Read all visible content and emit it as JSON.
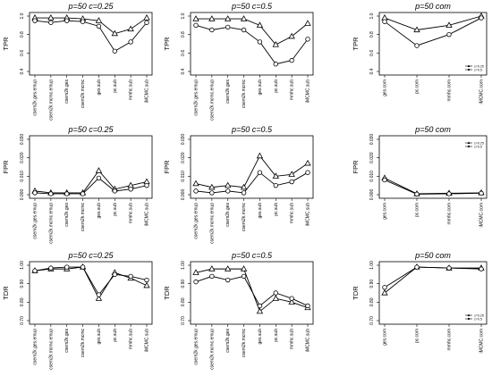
{
  "colors": {
    "line": "#000000",
    "frame": "#000000",
    "background": "#ffffff"
  },
  "chart_data": [
    {
      "type": "line",
      "title": "p=50  c=0.25",
      "ylabel": "TPR",
      "ylim": [
        0.4,
        1.0
      ],
      "yticks": [
        "0.4",
        "0.6",
        "0.8",
        "1.0"
      ],
      "categories": [
        "csem2k.ges.emup",
        "csem2k.mcmc.emup",
        "csem2k.ges",
        "csem2k.mcmc",
        "ges.sub",
        "pc.sub",
        "mmhc.sub",
        "iMCMC.sub"
      ],
      "series": [
        {
          "marker": "triangle",
          "values": [
            0.98,
            0.98,
            0.98,
            0.97,
            0.95,
            0.81,
            0.86,
            0.98
          ]
        },
        {
          "marker": "circle",
          "values": [
            0.95,
            0.93,
            0.95,
            0.94,
            0.89,
            0.62,
            0.72,
            0.93
          ]
        }
      ]
    },
    {
      "type": "line",
      "title": "p=50  c=0.5",
      "ylabel": "TPR",
      "ylim": [
        0.4,
        1.0
      ],
      "yticks": [
        "0.4",
        "0.6",
        "0.8",
        "1.0"
      ],
      "categories": [
        "csem2k.ges.emup",
        "csem2k.mcmc.emup",
        "csem2k.ges",
        "csem2k.mcmc",
        "ges.sub",
        "pc.sub",
        "mmhc.sub",
        "iMCMC.sub"
      ],
      "series": [
        {
          "marker": "triangle",
          "values": [
            0.97,
            0.97,
            0.97,
            0.97,
            0.9,
            0.69,
            0.78,
            0.92
          ]
        },
        {
          "marker": "circle",
          "values": [
            0.9,
            0.85,
            0.88,
            0.85,
            0.72,
            0.48,
            0.52,
            0.75
          ]
        }
      ]
    },
    {
      "type": "line",
      "title": "p=50  com",
      "ylabel": "TPR",
      "ylim": [
        0.4,
        1.0
      ],
      "yticks": [
        "0.4",
        "0.6",
        "0.8",
        "1.0"
      ],
      "categories": [
        "ges.com",
        "pc.com",
        "mmhc.com",
        "iMCMC.com"
      ],
      "legend": {
        "position": "bottom-right",
        "entries": [
          "c=0.25",
          "c=0.5"
        ]
      },
      "series": [
        {
          "marker": "triangle",
          "values": [
            0.98,
            0.85,
            0.9,
            1.0
          ]
        },
        {
          "marker": "circle",
          "values": [
            0.94,
            0.68,
            0.8,
            0.98
          ]
        }
      ]
    },
    {
      "type": "line",
      "title": "p=50  c=0.25",
      "ylabel": "FPR",
      "ylim": [
        0.0,
        0.03
      ],
      "yticks": [
        "0.000",
        "0.010",
        "0.020",
        "0.030"
      ],
      "categories": [
        "csem2k.ges.emup",
        "csem2k.mcmc.emup",
        "csem2k.ges",
        "csem2k.mcmc",
        "ges.sub",
        "pc.sub",
        "mmhc.sub",
        "iMCMC.sub"
      ],
      "series": [
        {
          "marker": "triangle",
          "values": [
            0.002,
            0.001,
            0.001,
            0.001,
            0.013,
            0.003,
            0.005,
            0.007
          ]
        },
        {
          "marker": "circle",
          "values": [
            0.001,
            0.0005,
            0.0005,
            0.0005,
            0.009,
            0.002,
            0.003,
            0.005
          ]
        }
      ]
    },
    {
      "type": "line",
      "title": "p=50  c=0.5",
      "ylabel": "FPR",
      "ylim": [
        0.0,
        0.03
      ],
      "yticks": [
        "0.000",
        "0.010",
        "0.020",
        "0.030"
      ],
      "categories": [
        "csem2k.ges.emup",
        "csem2k.mcmc.emup",
        "csem2k.ges",
        "csem2k.mcmc",
        "ges.sub",
        "pc.sub",
        "mmhc.sub",
        "iMCMC.sub"
      ],
      "series": [
        {
          "marker": "triangle",
          "values": [
            0.006,
            0.004,
            0.005,
            0.004,
            0.021,
            0.01,
            0.011,
            0.017
          ]
        },
        {
          "marker": "circle",
          "values": [
            0.002,
            0.001,
            0.002,
            0.001,
            0.012,
            0.005,
            0.007,
            0.012
          ]
        }
      ]
    },
    {
      "type": "line",
      "title": "p=50  com",
      "ylabel": "FPR",
      "ylim": [
        0.0,
        0.03
      ],
      "yticks": [
        "0.000",
        "0.010",
        "0.020",
        "0.030"
      ],
      "categories": [
        "ges.com",
        "pc.com",
        "mmhc.com",
        "iMCMC.com"
      ],
      "legend": {
        "position": "top-right",
        "entries": [
          "c=0.25",
          "c=0.5"
        ]
      },
      "series": [
        {
          "marker": "triangle",
          "values": [
            0.009,
            0.0005,
            0.0008,
            0.001
          ]
        },
        {
          "marker": "circle",
          "values": [
            0.008,
            0.0003,
            0.0005,
            0.0008
          ]
        }
      ]
    },
    {
      "type": "line",
      "title": "p=50  c=0.25",
      "ylabel": "TDR",
      "ylim": [
        0.7,
        1.0
      ],
      "yticks": [
        "0.70",
        "0.80",
        "0.90",
        "1.00"
      ],
      "categories": [
        "csem2k.ges.emup",
        "csem2k.mcmc.emup",
        "csem2k.ges",
        "csem2k.mcmc",
        "ges.sub",
        "pc.sub",
        "mmhc.sub",
        "iMCMC.sub"
      ],
      "series": [
        {
          "marker": "triangle",
          "values": [
            0.97,
            0.98,
            0.98,
            0.99,
            0.82,
            0.96,
            0.93,
            0.89
          ]
        },
        {
          "marker": "circle",
          "values": [
            0.97,
            0.985,
            0.99,
            0.99,
            0.84,
            0.95,
            0.94,
            0.92
          ]
        }
      ]
    },
    {
      "type": "line",
      "title": "p=50  c=0.5",
      "ylabel": "TDR",
      "ylim": [
        0.7,
        1.0
      ],
      "yticks": [
        "0.70",
        "0.80",
        "0.90",
        "1.00"
      ],
      "categories": [
        "csem2k.ges.emup",
        "csem2k.mcmc.emup",
        "csem2k.ges",
        "csem2k.mcmc",
        "ges.sub",
        "pc.sub",
        "mmhc.sub",
        "iMCMC.sub"
      ],
      "series": [
        {
          "marker": "triangle",
          "values": [
            0.96,
            0.98,
            0.98,
            0.98,
            0.75,
            0.82,
            0.8,
            0.77
          ]
        },
        {
          "marker": "circle",
          "values": [
            0.91,
            0.94,
            0.92,
            0.94,
            0.78,
            0.85,
            0.82,
            0.78
          ]
        }
      ]
    },
    {
      "type": "line",
      "title": "p=50  com",
      "ylabel": "TDR",
      "ylim": [
        0.7,
        1.0
      ],
      "yticks": [
        "0.70",
        "0.80",
        "0.90",
        "1.00"
      ],
      "categories": [
        "ges.com",
        "pc.com",
        "mmhc.com",
        "iMCMC.com"
      ],
      "legend": {
        "position": "bottom-right",
        "entries": [
          "c=0.25",
          "c=0.5"
        ]
      },
      "series": [
        {
          "marker": "triangle",
          "values": [
            0.85,
            0.99,
            0.985,
            0.985
          ]
        },
        {
          "marker": "circle",
          "values": [
            0.88,
            0.99,
            0.985,
            0.98
          ]
        }
      ]
    }
  ]
}
